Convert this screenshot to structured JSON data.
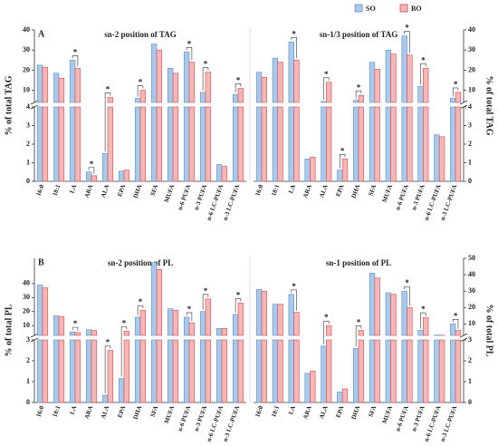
{
  "chart_data": [
    {
      "type": "bar",
      "panel": "A",
      "title": "sn-2 position of TAG",
      "ylabel": "% of total TAG",
      "categories": [
        "16:0",
        "18:1",
        "LA",
        "ARA",
        "ALA",
        "EPA",
        "DHA",
        "SFA",
        "MUFA",
        "n-6 PUFA",
        "n-3 PUFA",
        "n-6 LC-PUFA",
        "n-3 LC-PUFA"
      ],
      "series": [
        {
          "name": "SO",
          "color": "#a9c9ea",
          "values": [
            22.5,
            18.5,
            25,
            0.5,
            1.5,
            0.55,
            6,
            33,
            21,
            29,
            9,
            0.9,
            8
          ]
        },
        {
          "name": "BO",
          "color": "#f4b6b6",
          "values": [
            21.5,
            16,
            21,
            0.3,
            6.5,
            0.6,
            10,
            30,
            18.5,
            24,
            19,
            0.8,
            11
          ]
        }
      ],
      "ylim_lower": [
        0,
        4
      ],
      "yticks_lower": [
        0,
        1,
        2,
        3,
        4
      ],
      "ylim_upper": [
        4,
        40
      ],
      "yticks_upper": [
        10,
        20,
        30,
        40
      ],
      "significance_marker": "*",
      "significant": [
        false,
        false,
        true,
        true,
        true,
        false,
        true,
        false,
        false,
        true,
        true,
        false,
        true
      ]
    },
    {
      "type": "bar",
      "title": "sn-1/3 position of TAG",
      "ylabel": "% of total TAG",
      "categories": [
        "16:0",
        "18:1",
        "LA",
        "ARA",
        "ALA",
        "EPA",
        "DHA",
        "SFA",
        "MUFA",
        "n-6 PUFA",
        "n-3 PUFA",
        "n-6 LC-PUFA",
        "n-3 LC-PUFA"
      ],
      "series": [
        {
          "name": "SO",
          "color": "#a9c9ea",
          "values": [
            19,
            26,
            34,
            1.2,
            4.5,
            0.6,
            5,
            24,
            30,
            37,
            12,
            2.5,
            6
          ]
        },
        {
          "name": "BO",
          "color": "#f4b6b6",
          "values": [
            16.5,
            24,
            25,
            1.3,
            14,
            1.2,
            7.5,
            20.5,
            28,
            27.5,
            21,
            2.4,
            9
          ]
        }
      ],
      "ylim_lower": [
        0,
        4
      ],
      "yticks_lower": [
        0,
        1,
        2,
        3,
        4
      ],
      "ylim_upper": [
        4,
        40
      ],
      "yticks_upper": [
        10,
        20,
        30,
        40
      ],
      "significance_marker": "*",
      "significant": [
        false,
        false,
        true,
        false,
        true,
        true,
        true,
        false,
        false,
        true,
        true,
        false,
        true
      ]
    },
    {
      "type": "bar",
      "panel": "B",
      "title": "sn-2 position of PL",
      "ylabel": "% of total PL",
      "categories": [
        "16:0",
        "18:1",
        "LA",
        "ARA",
        "ALA",
        "EPA",
        "DHA",
        "SFA",
        "MUFA",
        "n-6 PUFA",
        "n-3 PUFA",
        "n-6 LC-PUFA",
        "n-3 LC-PUFA"
      ],
      "series": [
        {
          "name": "SO",
          "color": "#a9c9ea",
          "values": [
            39,
            17,
            5.5,
            7,
            0.35,
            1.15,
            16,
            55,
            22,
            16,
            20,
            8,
            18
          ]
        },
        {
          "name": "BO",
          "color": "#f4b6b6",
          "values": [
            37,
            16.5,
            5,
            6.5,
            2.5,
            6,
            21,
            50,
            21,
            12,
            29,
            8,
            26
          ]
        }
      ],
      "ylim_lower": [
        0,
        3
      ],
      "yticks_lower": [
        0,
        1,
        2,
        3
      ],
      "ylim_upper": [
        3,
        58
      ],
      "yticks_upper": [
        10,
        20,
        30,
        40
      ],
      "significance_marker": "*",
      "significant": [
        false,
        false,
        true,
        false,
        true,
        true,
        true,
        false,
        false,
        true,
        true,
        false,
        true
      ]
    },
    {
      "type": "bar",
      "title": "sn-1 position of PL",
      "ylabel": "% of total PL",
      "categories": [
        "16:0",
        "18:1",
        "LA",
        "ARA",
        "ALA",
        "EPA",
        "DHA",
        "SFA",
        "MUFA",
        "n-6 PUFA",
        "n-3 PUFA",
        "n-6 LC-PUFA",
        "n-3 LC-PUFA"
      ],
      "series": [
        {
          "name": "SO",
          "color": "#a9c9ea",
          "values": [
            31,
            22,
            28,
            1.4,
            2.7,
            0.5,
            2.6,
            41,
            29,
            30,
            6,
            3.2,
            10
          ]
        },
        {
          "name": "BO",
          "color": "#f4b6b6",
          "values": [
            30,
            22,
            17,
            1.5,
            9,
            0.65,
            6,
            38,
            28,
            20,
            14,
            3.1,
            6
          ]
        }
      ],
      "ylim_lower": [
        0,
        3
      ],
      "yticks_lower": [
        0,
        1,
        2,
        3
      ],
      "ylim_upper": [
        3,
        50
      ],
      "yticks_upper": [
        10,
        20,
        30,
        40,
        50
      ],
      "significance_marker": "*",
      "significant": [
        false,
        false,
        true,
        false,
        true,
        false,
        true,
        false,
        false,
        true,
        true,
        false,
        true
      ]
    }
  ]
}
